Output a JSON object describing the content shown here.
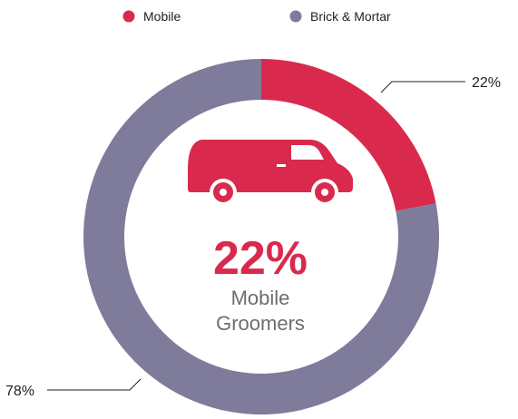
{
  "chart_data": {
    "type": "pie",
    "donut": true,
    "legend_position": "top",
    "categories": [
      "Mobile",
      "Brick & Mortar"
    ],
    "values": [
      22,
      78
    ],
    "value_labels": [
      "22%",
      "78%"
    ],
    "colors": [
      "#d92a4e",
      "#7f7b9b"
    ],
    "center": {
      "value": "22%",
      "line1": "Mobile",
      "line2": "Groomers",
      "icon": "van-icon"
    }
  }
}
